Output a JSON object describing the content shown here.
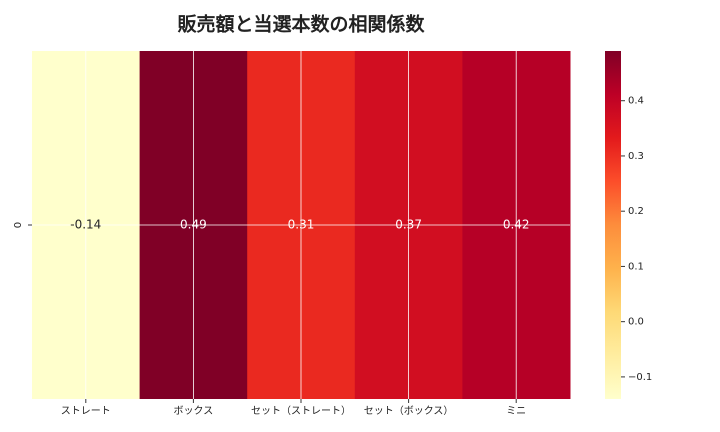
{
  "chart_data": {
    "type": "heatmap",
    "title": "販売額と当選本数の相関係数",
    "categories": [
      "ストレート",
      "ボックス",
      "セット（ストレート）",
      "セット（ボックス）",
      "ミニ"
    ],
    "rows": [
      "0"
    ],
    "values": [
      [
        -0.14,
        0.49,
        0.31,
        0.37,
        0.42
      ]
    ],
    "colormap": "YlOrRd",
    "clim": [
      -0.14,
      0.49
    ],
    "cticks": [
      {
        "value": -0.1,
        "label": "−0.1"
      },
      {
        "value": 0,
        "label": "0.0"
      },
      {
        "value": 0.1,
        "label": "0.1"
      },
      {
        "value": 0.2,
        "label": "0.2"
      },
      {
        "value": 0.3,
        "label": "0.3"
      },
      {
        "value": 0.4,
        "label": "0.4"
      }
    ],
    "grid": true
  }
}
